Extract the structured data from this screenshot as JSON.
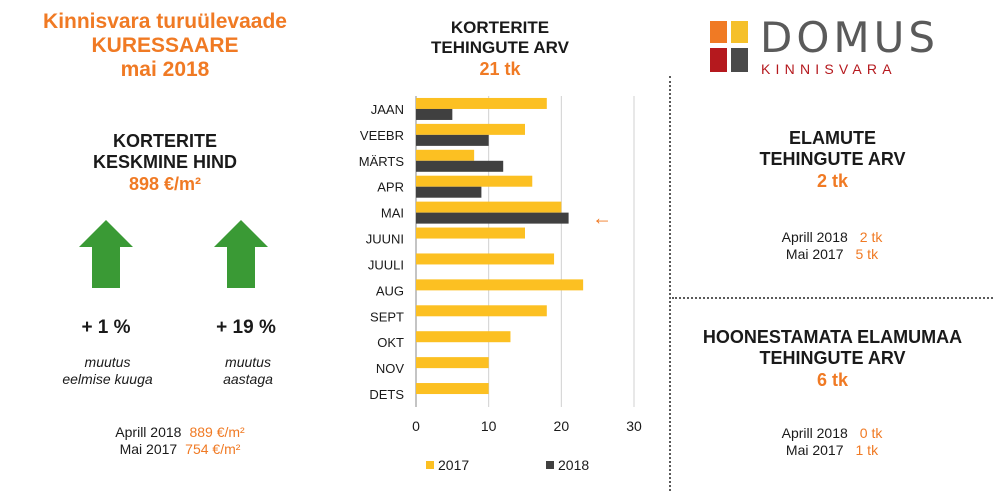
{
  "left": {
    "title_line1": "Kinnisvara turuülevaade",
    "title_line2": "KURESSAARE",
    "title_line3": "mai 2018",
    "price_heading_line1": "KORTERITE",
    "price_heading_line2": "KESKMINE HIND",
    "price_value": "898 €/m²",
    "change_month": "+ 1 %",
    "change_month_caption_line1": "muutus",
    "change_month_caption_line2": "eelmise kuuga",
    "change_year": "+ 19 %",
    "change_year_caption_line1": "muutus",
    "change_year_caption_line2": "aastaga",
    "prev_label_1": "Aprill 2018",
    "prev_value_1": "889 €/m²",
    "prev_label_2": "Mai 2017",
    "prev_value_2": "754 €/m²",
    "arrow_color": "#3a9a35"
  },
  "middle": {
    "heading_line1": "KORTERITE",
    "heading_line2": "TEHINGUTE ARV",
    "value": "21 tk"
  },
  "chart_data": {
    "type": "bar",
    "orientation": "horizontal",
    "categories": [
      "JAAN",
      "VEEBR",
      "MÄRTS",
      "APR",
      "MAI",
      "JUUNI",
      "JUULI",
      "AUG",
      "SEPT",
      "OKT",
      "NOV",
      "DETS"
    ],
    "series": [
      {
        "name": "2017",
        "color": "#fcc022",
        "values": [
          18,
          15,
          8,
          16,
          20,
          15,
          19,
          23,
          18,
          13,
          10,
          10
        ]
      },
      {
        "name": "2018",
        "color": "#404040",
        "values": [
          5,
          10,
          12,
          9,
          21,
          null,
          null,
          null,
          null,
          null,
          null,
          null
        ]
      }
    ],
    "xlim": [
      0,
      30
    ],
    "xticks": [
      0,
      10,
      20,
      30
    ],
    "grid": true,
    "legend": "bottom",
    "highlight_category": "MAI",
    "highlight_marker": "←"
  },
  "logo": {
    "word1": "DOMUS",
    "word2": "KINNISVARA",
    "tile_colors": [
      "#f07a24",
      "#f5c02a",
      "#b5191e",
      "#4a4a4a"
    ]
  },
  "right_top": {
    "heading_line1": "ELAMUTE",
    "heading_line2": "TEHINGUTE ARV",
    "value": "2 tk",
    "prev_label_1": "Aprill 2018",
    "prev_value_1": "2 tk",
    "prev_label_2": "Mai 2017",
    "prev_value_2": "5 tk"
  },
  "right_bottom": {
    "heading_line1": "HOONESTAMATA ELAMUMAA",
    "heading_line2": "TEHINGUTE ARV",
    "value": "6 tk",
    "prev_label_1": "Aprill 2018",
    "prev_value_1": "0 tk",
    "prev_label_2": "Mai 2017",
    "prev_value_2": "1 tk"
  }
}
